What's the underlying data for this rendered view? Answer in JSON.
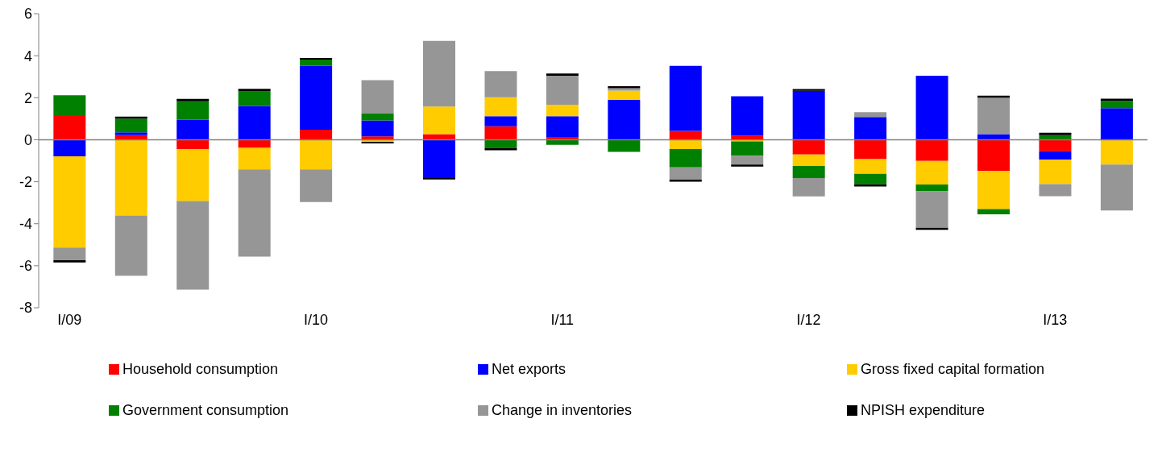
{
  "chart_data": {
    "type": "bar",
    "stacked": true,
    "categories": [
      "I/09",
      null,
      null,
      null,
      "I/10",
      null,
      null,
      null,
      "I/11",
      null,
      null,
      null,
      "I/12",
      null,
      null,
      null,
      "I/13",
      null
    ],
    "series": [
      {
        "name": "Household consumption",
        "color": "#ff0000",
        "values": [
          1.13,
          0.22,
          -0.45,
          -0.39,
          0.48,
          0.16,
          0.27,
          0.64,
          0.13,
          null,
          0.42,
          0.2,
          -0.7,
          -0.92,
          -1.01,
          -1.49,
          -0.55,
          null
        ]
      },
      {
        "name": "Net exports",
        "color": "#0000ff",
        "values": [
          -0.79,
          0.13,
          0.95,
          1.61,
          3.04,
          0.76,
          -1.82,
          0.48,
          0.99,
          1.9,
          3.1,
          1.87,
          2.33,
          1.08,
          3.05,
          0.27,
          -0.4,
          1.5
        ]
      },
      {
        "name": "Gross fixed capital formation",
        "color": "#ffcc00",
        "values": [
          -4.34,
          -3.61,
          -2.47,
          -1.02,
          -1.41,
          -0.1,
          1.31,
          0.9,
          0.55,
          0.44,
          -0.44,
          -0.08,
          -0.55,
          -0.7,
          -1.12,
          -1.81,
          -1.16,
          -1.18
        ]
      },
      {
        "name": "Government consumption",
        "color": "#008000",
        "values": [
          0.99,
          0.65,
          0.88,
          0.69,
          0.29,
          0.32,
          null,
          -0.39,
          -0.24,
          -0.58,
          -0.88,
          -0.68,
          -0.57,
          -0.5,
          -0.33,
          -0.25,
          0.22,
          0.35
        ]
      },
      {
        "name": "Change in inventories",
        "color": "#969696",
        "values": [
          -0.61,
          -2.87,
          -4.22,
          -4.15,
          -1.56,
          1.6,
          3.13,
          1.25,
          1.38,
          0.11,
          -0.58,
          -0.42,
          -0.88,
          0.23,
          -1.73,
          1.73,
          -0.58,
          -2.19
        ]
      },
      {
        "name": "NPISH expenditure",
        "color": "#000000",
        "values": [
          -0.1,
          0.1,
          0.11,
          0.12,
          0.08,
          -0.08,
          -0.07,
          -0.11,
          0.1,
          0.1,
          -0.1,
          -0.1,
          0.08,
          -0.11,
          -0.1,
          0.1,
          0.11,
          0.1
        ]
      }
    ],
    "ylim": [
      -8,
      6
    ],
    "yticks": [
      -8,
      -6,
      -4,
      -2,
      0,
      2,
      4,
      6
    ],
    "legend": "bottom"
  }
}
